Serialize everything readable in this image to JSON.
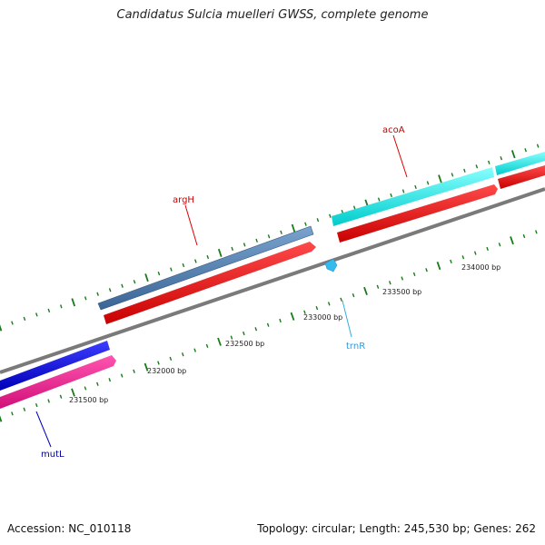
{
  "title": "Candidatus Sulcia muelleri GWSS, complete genome",
  "footer": {
    "accession": "Accession: NC_010118",
    "summary": "Topology: circular; Length: 245,530 bp; Genes: 262"
  },
  "genes": [
    {
      "id": "argH",
      "label": "argH",
      "color": "#4f7fb3"
    },
    {
      "id": "acoA",
      "label": "acoA",
      "color": "#00e6e6"
    },
    {
      "id": "mutL",
      "label": "mutL",
      "color": "#0000dd"
    },
    {
      "id": "trnR",
      "label": "trnR",
      "color": "#33bbee"
    }
  ],
  "position_labels": [
    "231500 bp",
    "232000 bp",
    "232500 bp",
    "233000 bp",
    "233500 bp",
    "234000 bp"
  ],
  "colors": {
    "cds_forward_red": "#ee0000",
    "pink_feature": "#ee1188",
    "backbone": "#888888",
    "tick_green": "#1a7a1a",
    "label_red": "#cc0000",
    "label_blue": "#000099",
    "label_cyan": "#3399dd"
  }
}
